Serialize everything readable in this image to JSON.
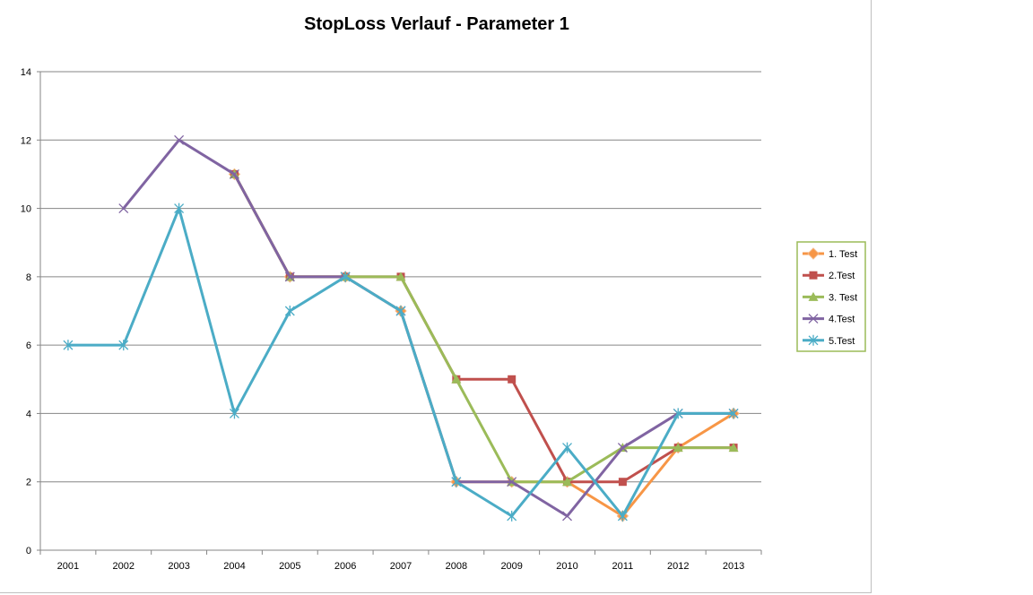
{
  "chart_data": {
    "type": "line",
    "title": "StopLoss Verlauf - Parameter 1",
    "xlabel": "",
    "ylabel": "",
    "categories": [
      "2001",
      "2002",
      "2003",
      "2004",
      "2005",
      "2006",
      "2007",
      "2008",
      "2009",
      "2010",
      "2011",
      "2012",
      "2013"
    ],
    "ylim": [
      0,
      14
    ],
    "yticks": [
      0,
      2,
      4,
      6,
      8,
      10,
      12,
      14
    ],
    "grid": true,
    "legend": "right",
    "series": [
      {
        "name": "1. Test",
        "color": "#f79646",
        "marker": "diamond",
        "values": [
          null,
          null,
          null,
          11,
          8,
          8,
          7,
          2,
          2,
          2,
          1,
          3,
          4
        ]
      },
      {
        "name": "2.Test",
        "color": "#c0504d",
        "marker": "square",
        "values": [
          null,
          null,
          null,
          11,
          8,
          8,
          8,
          5,
          5,
          2,
          2,
          3,
          3
        ]
      },
      {
        "name": "3. Test",
        "color": "#9bbb59",
        "marker": "triangle",
        "values": [
          null,
          null,
          null,
          11,
          8,
          8,
          8,
          5,
          2,
          2,
          3,
          3,
          3
        ]
      },
      {
        "name": "4.Test",
        "color": "#8064a2",
        "marker": "x",
        "values": [
          null,
          10,
          12,
          11,
          8,
          8,
          7,
          2,
          2,
          1,
          3,
          4,
          4
        ]
      },
      {
        "name": "5.Test",
        "color": "#4bacc6",
        "marker": "star",
        "values": [
          6,
          6,
          10,
          4,
          7,
          8,
          7,
          2,
          1,
          3,
          1,
          4,
          4
        ]
      }
    ]
  }
}
